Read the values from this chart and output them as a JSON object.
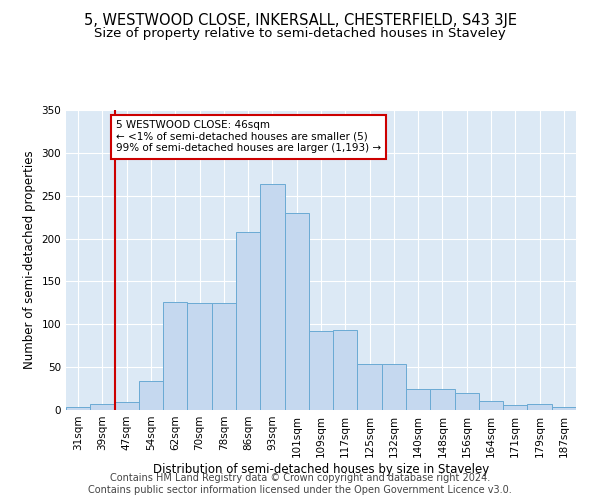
{
  "title": "5, WESTWOOD CLOSE, INKERSALL, CHESTERFIELD, S43 3JE",
  "subtitle": "Size of property relative to semi-detached houses in Staveley",
  "xlabel": "Distribution of semi-detached houses by size in Staveley",
  "ylabel": "Number of semi-detached properties",
  "footer_line1": "Contains HM Land Registry data © Crown copyright and database right 2024.",
  "footer_line2": "Contains public sector information licensed under the Open Government Licence v3.0.",
  "categories": [
    "31sqm",
    "39sqm",
    "47sqm",
    "54sqm",
    "62sqm",
    "70sqm",
    "78sqm",
    "86sqm",
    "93sqm",
    "101sqm",
    "109sqm",
    "117sqm",
    "125sqm",
    "132sqm",
    "140sqm",
    "148sqm",
    "156sqm",
    "164sqm",
    "171sqm",
    "179sqm",
    "187sqm"
  ],
  "values": [
    4,
    7,
    9,
    34,
    126,
    125,
    125,
    208,
    264,
    230,
    92,
    93,
    54,
    54,
    25,
    25,
    20,
    11,
    6,
    7,
    3
  ],
  "bar_color": "#c5d8ef",
  "bar_edge_color": "#6aaad4",
  "red_line_x": 2,
  "annotation_line1": "5 WESTWOOD CLOSE: 46sqm",
  "annotation_line2": "← <1% of semi-detached houses are smaller (5)",
  "annotation_line3": "99% of semi-detached houses are larger (1,193) →",
  "annotation_box_color": "#ffffff",
  "annotation_border_color": "#cc0000",
  "vline_color": "#cc0000",
  "ylim": [
    0,
    350
  ],
  "yticks": [
    0,
    50,
    100,
    150,
    200,
    250,
    300,
    350
  ],
  "background_color": "#dce9f5",
  "grid_color": "#ffffff",
  "title_fontsize": 10.5,
  "subtitle_fontsize": 9.5,
  "xlabel_fontsize": 8.5,
  "ylabel_fontsize": 8.5,
  "tick_fontsize": 7.5,
  "footer_fontsize": 7.0
}
